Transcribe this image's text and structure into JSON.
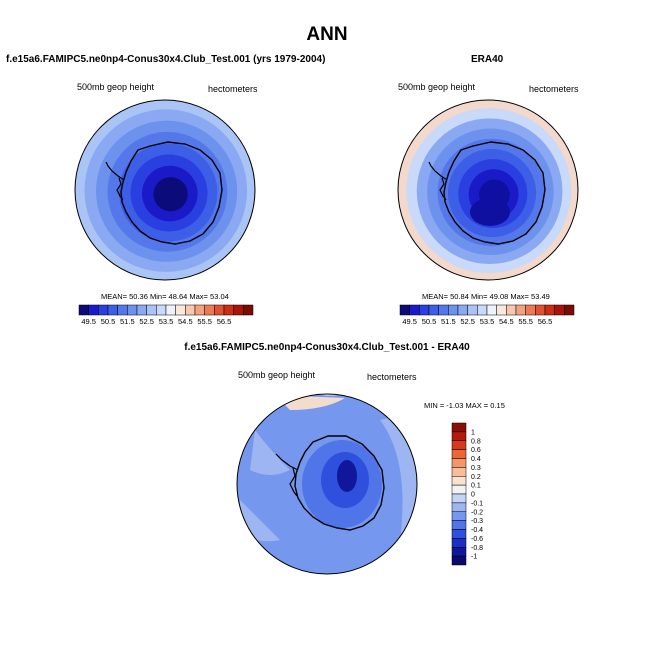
{
  "title": "ANN",
  "panels": [
    {
      "name": "model",
      "title": "f.e15a6.FAMIPC5.ne0np4-Conus30x4.Club_Test.001 (yrs 1979-2004)",
      "field_label": "500mb geop height",
      "units": "hectometers",
      "stats": "MEAN=  50.36   Min=  48.64   Max=  53.04"
    },
    {
      "name": "obs",
      "title": "ERA40",
      "field_label": "500mb geop height",
      "units": "hectometers",
      "stats": "MEAN=  50.84   Min=  49.08   Max=  53.49"
    },
    {
      "name": "diff",
      "title": "f.e15a6.FAMIPC5.ne0np4-Conus30x4.Club_Test.001 - ERA40",
      "field_label": "500mb geop height",
      "units": "hectometers",
      "stats": "MIN =  -1.03  MAX =   0.15"
    }
  ],
  "colorbar_abs": {
    "labels": [
      "49.5",
      "50.5",
      "51.5",
      "52.5",
      "53.5",
      "54.5",
      "55.5",
      "56.5"
    ],
    "colors": [
      "#0b0b7a",
      "#1a1ac8",
      "#2a3fe0",
      "#3d5ee6",
      "#5478ea",
      "#6d92ee",
      "#8aa9f2",
      "#aac3f6",
      "#c9d9fa",
      "#eef2fd",
      "#fde8dd",
      "#f8c7ad",
      "#f3a27e",
      "#ec7a55",
      "#e0522f",
      "#cc2e14",
      "#a81508",
      "#7a0c05"
    ]
  },
  "colorbar_diff": {
    "labels": [
      "1",
      "0.8",
      "0.6",
      "0.4",
      "0.3",
      "0.2",
      "0.1",
      "0",
      "-0.1",
      "-0.2",
      "-0.3",
      "-0.4",
      "-0.6",
      "-0.8",
      "-1"
    ],
    "colors": [
      "#8b0d06",
      "#b31b0c",
      "#d63a1c",
      "#ec6638",
      "#f4956a",
      "#f8bd99",
      "#fbe1cf",
      "#f2f2f2",
      "#c4d4f7",
      "#9db5f1",
      "#7597ee",
      "#4f75e8",
      "#2e50dc",
      "#1c2fc4",
      "#10179a",
      "#0a0a6e"
    ]
  },
  "map_colors": {
    "model": [
      "#abc4f6",
      "#8aa9f2",
      "#6d92ee",
      "#5478ea",
      "#3d5ee6",
      "#2a3fe0",
      "#1a1ac8",
      "#0b0b7a"
    ],
    "obs": [
      "#f3d8cc",
      "#c9d9fa",
      "#8aa9f2",
      "#6d92ee",
      "#5478ea",
      "#3d5ee6",
      "#2a3fe0",
      "#1a1ac8",
      "#0f0fa0"
    ],
    "diff": [
      "#7597ee",
      "#9db5f1",
      "#c4d4f7",
      "#f2f2f2",
      "#4f75e8",
      "#2e50dc",
      "#10179a"
    ]
  }
}
